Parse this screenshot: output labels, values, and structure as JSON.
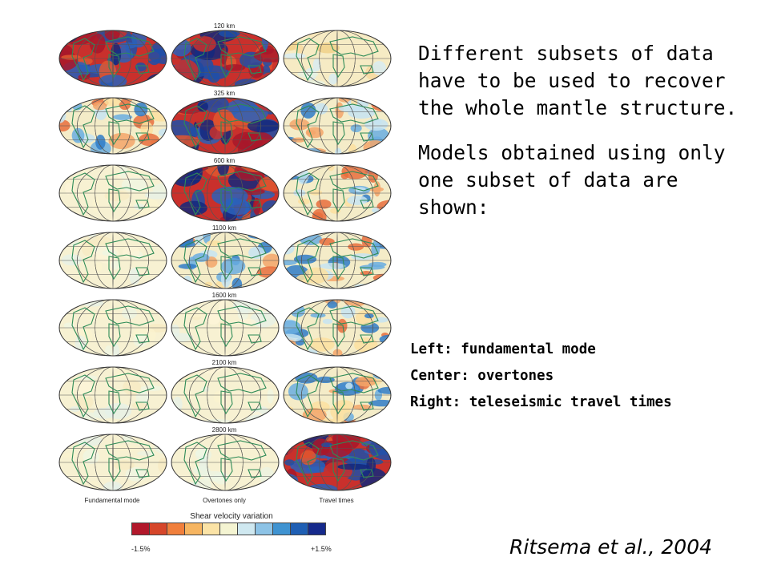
{
  "figure": {
    "depth_labels": [
      "120 km",
      "325 km",
      "600 km",
      "1100 km",
      "1600 km",
      "2100 km",
      "2800 km"
    ],
    "column_labels": [
      "Fundamental mode",
      "Overtones only",
      "Travel times"
    ],
    "colorbar": {
      "title": "Shear velocity variation",
      "min_label": "-1.5%",
      "max_label": "+1.5%",
      "colors": [
        "#b2182b",
        "#d6462a",
        "#f07f3c",
        "#f6b561",
        "#fbe3a6",
        "#f4f4d2",
        "#cfe8f0",
        "#8dc3e6",
        "#3f93d1",
        "#1f5fb4",
        "#162a8c"
      ]
    },
    "maps": [
      [
        "strong",
        "strong",
        "weak"
      ],
      [
        "medium",
        "strong",
        "medium"
      ],
      [
        "blank",
        "strong",
        "medium"
      ],
      [
        "blank",
        "medium",
        "medium"
      ],
      [
        "blank",
        "blank",
        "medium"
      ],
      [
        "blank",
        "blank",
        "medium"
      ],
      [
        "blank",
        "blank",
        "strong"
      ]
    ]
  },
  "text": {
    "para1": "Different subsets of data have to be used to recover the whole mantle structure.",
    "para2": "Models obtained using only one subset of data are shown:",
    "legend": [
      "Left: fundamental mode",
      "Center: overtones",
      "Right: teleseismic travel times"
    ],
    "citation": "Ritsema et al., 2004"
  }
}
